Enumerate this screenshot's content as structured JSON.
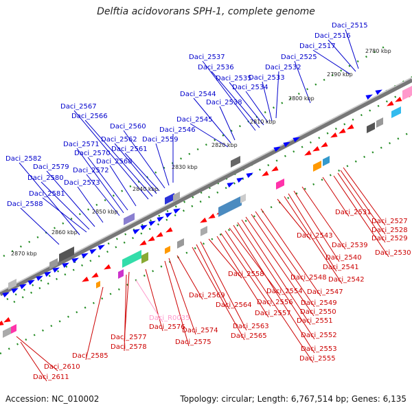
{
  "title": "Delftia acidovorans SPH-1, complete genome",
  "footer": {
    "accession": "Accession: NC_010002",
    "topology": "Topology: circular; Length: 6,767,514 bp; Genes: 6,135"
  },
  "colors": {
    "forward": "#0000ff",
    "reverse": "#ff0000",
    "rna": "#ff99cc",
    "backbone": "#666666",
    "ticks": "#228b22"
  },
  "kbp_labels": [
    "2780 kbp",
    "2790 kbp",
    "2800 kbp",
    "2810 kbp",
    "2820 kbp",
    "2830 kbp",
    "2840 kbp",
    "2850 kbp",
    "2860 kbp",
    "2870 kbp"
  ],
  "top_genes": [
    "Daci_2515",
    "Daci_2516",
    "Daci_2517",
    "Daci_2525",
    "Daci_2532",
    "Daci_2533",
    "Daci_2534",
    "Daci_2535",
    "Daci_2536",
    "Daci_2537",
    "Daci_2538",
    "Daci_2544",
    "Daci_2545",
    "Daci_2546",
    "Daci_2559",
    "Daci_2560",
    "Daci_2561",
    "Daci_2562",
    "Daci_2566",
    "Daci_2567",
    "Daci_2568",
    "Daci_2570",
    "Daci_2571",
    "Daci_2572",
    "Daci_2573",
    "Daci_2579",
    "Daci_2580",
    "Daci_2581",
    "Daci_2582",
    "Daci_2588"
  ],
  "bottom_genes": [
    "Daci_2527",
    "Daci_2528",
    "Daci_2529",
    "Daci_2530",
    "Daci_2531",
    "Daci_2539",
    "Daci_2540",
    "Daci_2541",
    "Daci_2542",
    "Daci_2543",
    "Daci_2547",
    "Daci_2548",
    "Daci_2549",
    "Daci_2550",
    "Daci_2551",
    "Daci_2552",
    "Daci_2553",
    "Daci_2554",
    "Daci_2555",
    "Daci_2556",
    "Daci_2557",
    "Daci_2558",
    "Daci_2563",
    "Daci_2564",
    "Daci_2565",
    "Daci_2569",
    "Daci_2574",
    "Daci_2575",
    "Daci_2576",
    "Daci_R0035",
    "Daci_2577",
    "Daci_2578",
    "Daci_2585",
    "Daci_2610",
    "Daci_2611"
  ]
}
